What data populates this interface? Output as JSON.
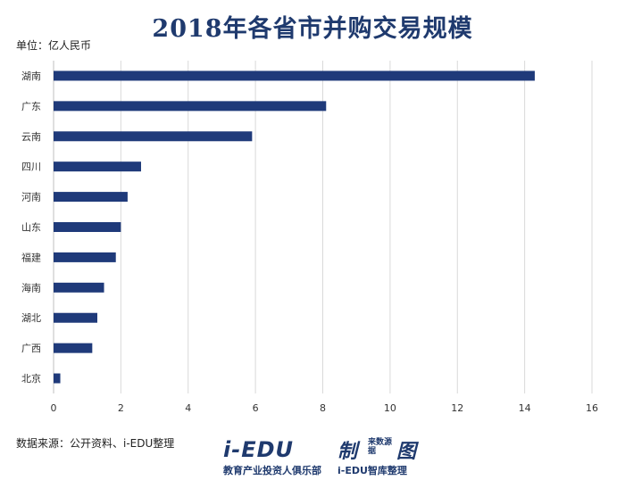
{
  "header": {
    "title": "2018年各省市并购交易规模",
    "unit": "单位：亿人民币"
  },
  "footer": {
    "source": "数据来源：公开资料、i-EDU整理",
    "logo_main": "i-EDU",
    "logo_made": "制",
    "logo_src": "来数源据",
    "logo_tu": "图",
    "logo_sub1": "教育产业投资人俱乐部",
    "logo_sub2": "i-EDU智库整理",
    "watermark": "i-EDU 教育产业投资人俱乐部"
  },
  "colors": {
    "bar": "#1f3a7a",
    "title": "#1f3a6e",
    "grid": "#d9d9d9",
    "axis": "#bfbfbf"
  },
  "chart_data": {
    "type": "bar",
    "orientation": "horizontal",
    "title": "2018年各省市并购交易规模",
    "unit": "单位：亿人民币",
    "categories": [
      "湖南",
      "广东",
      "云南",
      "四川",
      "河南",
      "山东",
      "福建",
      "海南",
      "湖北",
      "广西",
      "北京"
    ],
    "values": [
      14.3,
      8.1,
      5.9,
      2.6,
      2.2,
      2.0,
      1.85,
      1.5,
      1.3,
      1.15,
      0.2
    ],
    "xlim": [
      0,
      16
    ],
    "xticks": [
      "0",
      "2",
      "4",
      "6",
      "8",
      "10",
      "12",
      "14",
      "16"
    ],
    "grid": "vertical",
    "legend": "none"
  }
}
